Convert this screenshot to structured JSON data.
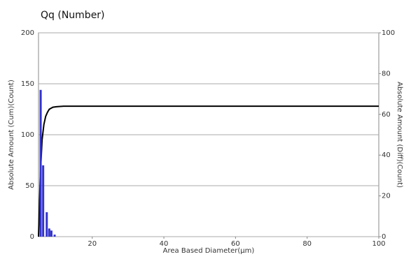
{
  "chart_data": {
    "type": "combo",
    "title": "Qq (Number)",
    "x_label": "Area Based Diameter(μm)",
    "y_label": "Absolute Amount (Cum)(Count)",
    "y2_label": "Absolute Amount (Diff)(Count)",
    "xlim": [
      5,
      100
    ],
    "xticks": [
      20,
      40,
      60,
      80,
      100
    ],
    "ylim": [
      0,
      200
    ],
    "yticks": [
      0,
      50,
      100,
      150,
      200
    ],
    "y2lim": [
      0,
      100
    ],
    "y2ticks": [
      0,
      20,
      40,
      60,
      80,
      100
    ],
    "grid": true,
    "series": [
      {
        "name": "Cum",
        "type": "line",
        "color": "#000000",
        "x": [
          5,
          5.5,
          6,
          6.5,
          7,
          7.5,
          8,
          9,
          10,
          12,
          100
        ],
        "values": [
          0,
          60,
          95,
          110,
          118,
          122,
          125,
          127,
          127.5,
          128,
          128
        ]
      },
      {
        "name": "Diff",
        "type": "bar",
        "axis": "y2",
        "color": "#3333cc",
        "x": [
          5.6,
          6.3,
          7.3,
          8,
          8.6,
          9.5
        ],
        "values": [
          72,
          35,
          12,
          4,
          3,
          1
        ]
      }
    ]
  }
}
